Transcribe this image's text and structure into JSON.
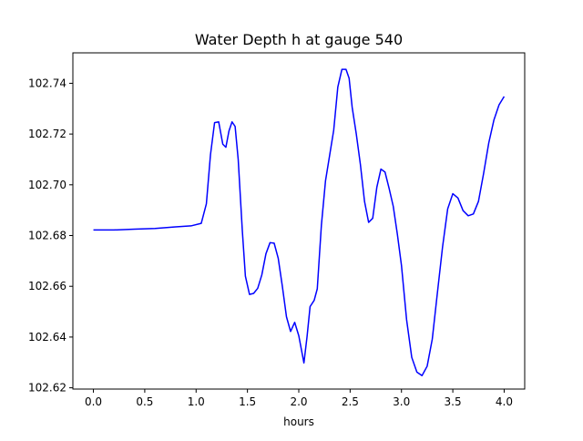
{
  "chart_data": {
    "type": "line",
    "title": "Water Depth h at gauge 540",
    "xlabel": "hours",
    "ylabel": "",
    "xlim": [
      -0.2,
      4.2
    ],
    "ylim": [
      102.6195,
      102.752
    ],
    "xticks": [
      "0.0",
      "0.5",
      "1.0",
      "1.5",
      "2.0",
      "2.5",
      "3.0",
      "3.5",
      "4.0"
    ],
    "yticks": [
      "102.62",
      "102.64",
      "102.66",
      "102.68",
      "102.70",
      "102.72",
      "102.74"
    ],
    "grid": false,
    "legend": "none",
    "line_color": "#0000ff",
    "series": [
      {
        "x": [
          0.0,
          0.2,
          0.4,
          0.6,
          0.8,
          0.95,
          1.05,
          1.1,
          1.14,
          1.18,
          1.22,
          1.26,
          1.29,
          1.32,
          1.35,
          1.38,
          1.41,
          1.45,
          1.48,
          1.52,
          1.56,
          1.6,
          1.64,
          1.68,
          1.72,
          1.76,
          1.8,
          1.84,
          1.88,
          1.92,
          1.96,
          2.0,
          2.05,
          2.08,
          2.11,
          2.15,
          2.18,
          2.22,
          2.26,
          2.3,
          2.34,
          2.38,
          2.42,
          2.46,
          2.49,
          2.52,
          2.56,
          2.6,
          2.64,
          2.68,
          2.72,
          2.76,
          2.8,
          2.84,
          2.88,
          2.92,
          2.96,
          3.0,
          3.05,
          3.1,
          3.15,
          3.2,
          3.25,
          3.3,
          3.35,
          3.4,
          3.45,
          3.5,
          3.55,
          3.6,
          3.65,
          3.7,
          3.75,
          3.8,
          3.85,
          3.9,
          3.95,
          4.0
        ],
        "y": [
          102.6822,
          102.6822,
          102.6825,
          102.6828,
          102.6834,
          102.6838,
          102.6848,
          102.6925,
          102.7118,
          102.7245,
          102.7248,
          102.716,
          102.7148,
          102.7212,
          102.7248,
          102.723,
          102.71,
          102.682,
          102.664,
          102.6568,
          102.6572,
          102.6592,
          102.6645,
          102.6728,
          102.6772,
          102.677,
          102.671,
          102.66,
          102.648,
          102.6422,
          102.6458,
          102.6405,
          102.6298,
          102.64,
          102.652,
          102.6545,
          102.659,
          102.684,
          102.7015,
          102.7115,
          102.7215,
          102.7385,
          102.7455,
          102.7455,
          102.742,
          102.7305,
          102.72,
          102.708,
          102.6935,
          102.6852,
          102.6868,
          102.699,
          102.7062,
          102.705,
          102.6985,
          102.6915,
          102.6805,
          102.6682,
          102.6468,
          102.632,
          102.6262,
          102.6248,
          102.6285,
          102.6392,
          102.6575,
          102.6755,
          102.6905,
          102.6965,
          102.6948,
          102.6898,
          102.6878,
          102.6885,
          102.6935,
          102.7045,
          102.7165,
          102.7255,
          102.7315,
          102.7348
        ]
      }
    ]
  }
}
